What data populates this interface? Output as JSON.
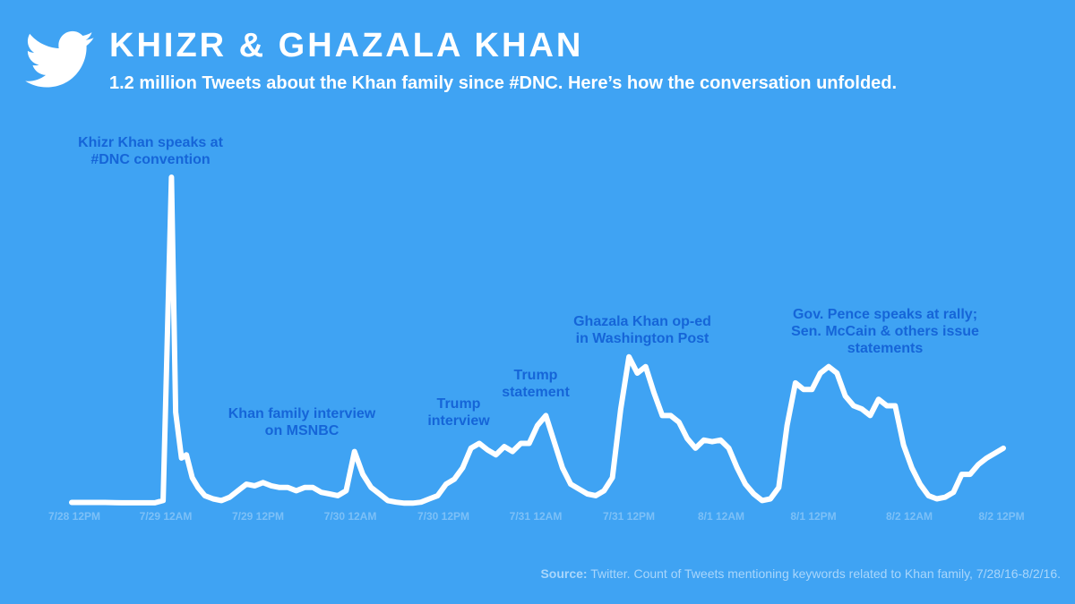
{
  "header": {
    "title": "KHIZR & GHAZALA KHAN",
    "subtitle": "1.2 million Tweets about the Khan family since #DNC. Here’s how the conversation unfolded."
  },
  "colors": {
    "background": "#3fa3f3",
    "line": "#ffffff",
    "annotation": "#1565d8",
    "tick": "#7cc0f7",
    "source": "#a9d6fb"
  },
  "source": {
    "label": "Source:",
    "text": " Twitter. Count of Tweets mentioning keywords related to Khan family, 7/28/16-8/2/16."
  },
  "chart_data": {
    "type": "line",
    "title": "",
    "xlabel": "",
    "ylabel": "",
    "grid": false,
    "legend": "none",
    "ylim": [
      0,
      100
    ],
    "x_ticks": [
      "7/28 12PM",
      "7/29 12AM",
      "7/29 12PM",
      "7/30 12AM",
      "7/30 12PM",
      "7/31 12AM",
      "7/31 12PM",
      "8/1 12AM",
      "8/1 12PM",
      "8/2 12AM",
      "8/2 12PM"
    ],
    "series": [
      {
        "name": "",
        "points": [
          [
            0,
            0.4
          ],
          [
            4,
            0.4
          ],
          [
            6,
            0.3
          ],
          [
            8,
            0.3
          ],
          [
            10,
            0.3
          ],
          [
            11,
            1
          ],
          [
            12,
            100
          ],
          [
            12.5,
            28
          ],
          [
            13.2,
            14
          ],
          [
            13.8,
            15
          ],
          [
            14.5,
            8
          ],
          [
            15.2,
            5
          ],
          [
            16,
            2.5
          ],
          [
            17,
            1.5
          ],
          [
            18,
            1
          ],
          [
            19,
            2
          ],
          [
            20,
            4
          ],
          [
            21,
            6
          ],
          [
            22,
            5.5
          ],
          [
            23,
            6.5
          ],
          [
            24,
            5.5
          ],
          [
            25,
            5
          ],
          [
            26,
            5
          ],
          [
            27,
            4
          ],
          [
            28,
            5
          ],
          [
            29,
            5
          ],
          [
            30,
            3.5
          ],
          [
            31,
            3
          ],
          [
            32,
            2.5
          ],
          [
            33,
            4
          ],
          [
            34,
            16
          ],
          [
            35,
            9
          ],
          [
            36,
            5
          ],
          [
            37,
            3
          ],
          [
            38,
            1
          ],
          [
            39,
            0.5
          ],
          [
            40,
            0.2
          ],
          [
            41,
            0.2
          ],
          [
            42,
            0.5
          ],
          [
            43,
            1.5
          ],
          [
            44,
            2.5
          ],
          [
            45,
            6
          ],
          [
            46,
            7.5
          ],
          [
            47,
            11
          ],
          [
            48,
            17
          ],
          [
            49,
            18.5
          ],
          [
            50,
            16.5
          ],
          [
            51,
            15
          ],
          [
            52,
            17.5
          ],
          [
            53,
            16
          ],
          [
            54,
            18.5
          ],
          [
            55,
            18.5
          ],
          [
            56,
            24
          ],
          [
            57,
            27
          ],
          [
            58,
            19
          ],
          [
            59,
            11
          ],
          [
            60,
            6
          ],
          [
            61,
            4.5
          ],
          [
            62,
            3
          ],
          [
            63,
            2.5
          ],
          [
            64,
            4
          ],
          [
            65,
            8
          ],
          [
            66,
            29
          ],
          [
            67,
            45
          ],
          [
            68,
            40
          ],
          [
            69,
            42
          ],
          [
            70,
            34
          ],
          [
            71,
            27
          ],
          [
            72,
            27
          ],
          [
            73,
            25
          ],
          [
            74,
            20
          ],
          [
            75,
            17
          ],
          [
            76,
            19.5
          ],
          [
            77,
            19
          ],
          [
            78,
            19.5
          ],
          [
            79,
            17
          ],
          [
            80,
            11
          ],
          [
            81,
            6
          ],
          [
            82,
            3
          ],
          [
            83,
            1
          ],
          [
            84,
            1.5
          ],
          [
            85,
            5
          ],
          [
            86,
            24
          ],
          [
            87,
            37
          ],
          [
            88,
            35
          ],
          [
            89,
            35
          ],
          [
            90,
            40
          ],
          [
            91,
            42
          ],
          [
            92,
            40
          ],
          [
            93,
            33
          ],
          [
            94,
            30
          ],
          [
            95,
            29
          ],
          [
            96,
            27
          ],
          [
            97,
            32
          ],
          [
            98,
            30
          ],
          [
            99,
            30
          ],
          [
            100,
            18
          ],
          [
            101,
            11
          ],
          [
            102,
            6
          ],
          [
            103,
            2.5
          ],
          [
            104,
            1.5
          ],
          [
            105,
            2
          ],
          [
            106,
            3.5
          ],
          [
            107,
            9
          ],
          [
            108,
            9
          ],
          [
            109,
            12
          ],
          [
            110,
            14
          ],
          [
            111,
            15.5
          ],
          [
            112,
            17
          ]
        ]
      }
    ],
    "annotations": [
      {
        "lines": [
          "Khizr Khan speaks at",
          "#DNC convention"
        ]
      },
      {
        "lines": [
          "Khan family interview",
          "on MSNBC"
        ]
      },
      {
        "lines": [
          "Trump",
          "interview"
        ]
      },
      {
        "lines": [
          "Trump",
          "statement"
        ]
      },
      {
        "lines": [
          "Ghazala Khan op-ed",
          "in Washington Post"
        ]
      },
      {
        "lines": [
          "Gov. Pence speaks at rally;",
          "Sen. McCain & others issue",
          "statements"
        ]
      }
    ]
  }
}
